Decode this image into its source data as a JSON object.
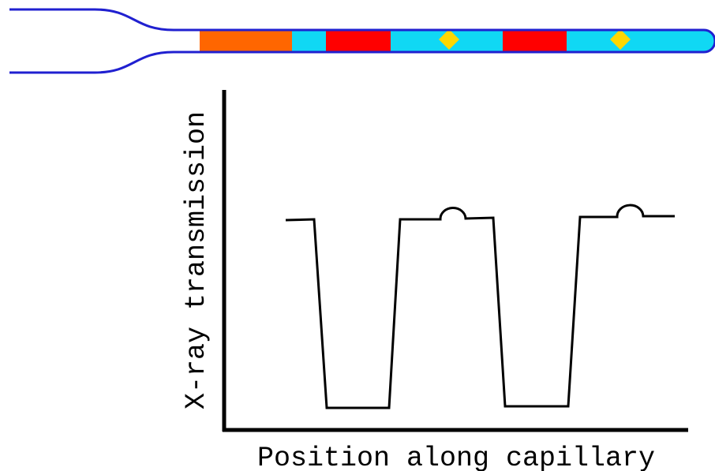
{
  "axes": {
    "y_label": "X-ray transmission",
    "x_label": "Position along capillary"
  }
}
